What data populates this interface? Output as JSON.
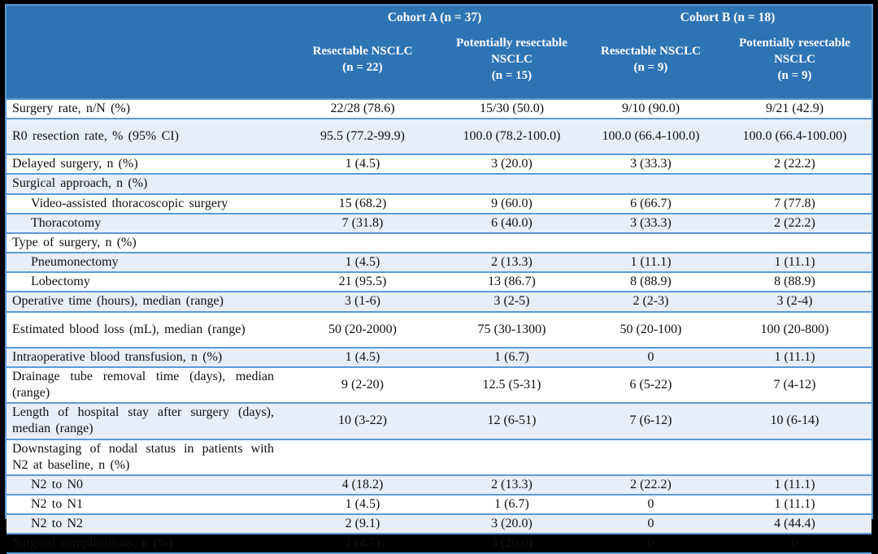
{
  "colors": {
    "header_bg": "#2E74B5",
    "row_alt_bg": "#E8EEF7",
    "border_blue": "#5B9BD5",
    "frame_black": "#000000"
  },
  "table": {
    "cohorts": [
      {
        "label": "Cohort A (n = 37)"
      },
      {
        "label": "Cohort B (n = 18)"
      }
    ],
    "columns": [
      {
        "name": "Resectable NSCLC",
        "n": "(n = 22)"
      },
      {
        "name": "Potentially resectable NSCLC",
        "n": "(n = 15)"
      },
      {
        "name": "Resectable NSCLC",
        "n": "(n = 9)"
      },
      {
        "name": "Potentially resectable NSCLC",
        "n": "(n = 9)"
      }
    ],
    "rows": [
      {
        "label": "Surgery rate, n/N (%)",
        "indent": false,
        "values": [
          "22/28 (78.6)",
          "15/30 (50.0)",
          "9/10 (90.0)",
          "9/21 (42.9)"
        ]
      },
      {
        "label": "R0 resection rate, % (95% CI)",
        "indent": false,
        "tall": true,
        "values": [
          "95.5 (77.2-99.9)",
          "100.0 (78.2-100.0)",
          "100.0 (66.4-100.0)",
          "100.0 (66.4-100.00)"
        ]
      },
      {
        "label": "Delayed surgery, n (%)",
        "indent": false,
        "values": [
          "1 (4.5)",
          "3 (20.0)",
          "3 (33.3)",
          "2 (22.2)"
        ]
      },
      {
        "label": "Surgical approach, n (%)",
        "indent": false,
        "values": [
          "",
          "",
          "",
          ""
        ]
      },
      {
        "label": "Video-assisted thoracoscopic surgery",
        "indent": true,
        "values": [
          "15 (68.2)",
          "9 (60.0)",
          "6 (66.7)",
          "7 (77.8)"
        ]
      },
      {
        "label": "Thoracotomy",
        "indent": true,
        "values": [
          "7 (31.8)",
          "6 (40.0)",
          "3 (33.3)",
          "2 (22.2)"
        ]
      },
      {
        "label": "Type of surgery, n (%)",
        "indent": false,
        "values": [
          "",
          "",
          "",
          ""
        ]
      },
      {
        "label": "Pneumonectomy",
        "indent": true,
        "values": [
          "1 (4.5)",
          "2 (13.3)",
          "1 (11.1)",
          "1 (11.1)"
        ]
      },
      {
        "label": "Lobectomy",
        "indent": true,
        "values": [
          "21 (95.5)",
          "13 (86.7)",
          "8 (88.9)",
          "8 (88.9)"
        ]
      },
      {
        "label": "Operative time (hours), median (range)",
        "indent": false,
        "values": [
          "3 (1-6)",
          "3 (2-5)",
          "2 (2-3)",
          "3 (2-4)"
        ]
      },
      {
        "label": "Estimated blood loss (mL), median (range)",
        "indent": false,
        "tall": true,
        "values": [
          "50 (20-2000)",
          "75 (30-1300)",
          "50 (20-100)",
          "100 (20-800)"
        ]
      },
      {
        "label": "Intraoperative blood transfusion, n (%)",
        "indent": false,
        "values": [
          "1 (4.5)",
          "1 (6.7)",
          "0",
          "1 (11.1)"
        ]
      },
      {
        "label": "Drainage tube removal time (days), median (range)",
        "indent": false,
        "values": [
          "9 (2-20)",
          "12.5 (5-31)",
          "6 (5-22)",
          "7 (4-12)"
        ]
      },
      {
        "label": "Length of hospital stay after surgery (days), median (range)",
        "indent": false,
        "values": [
          "10 (3-22)",
          "12 (6-51)",
          "7 (6-12)",
          "10 (6-14)"
        ]
      },
      {
        "label": "Downstaging of nodal status in patients with N2 at baseline, n (%)",
        "indent": false,
        "values": [
          "",
          "",
          "",
          ""
        ]
      },
      {
        "label": "N2 to N0",
        "indent": true,
        "values": [
          "4 (18.2)",
          "2 (13.3)",
          "2 (22.2)",
          "1 (11.1)"
        ]
      },
      {
        "label": "N2 to N1",
        "indent": true,
        "values": [
          "1 (4.5)",
          "1 (6.7)",
          "0",
          "1 (11.1)"
        ]
      },
      {
        "label": "N2 to N2",
        "indent": true,
        "values": [
          "2 (9.1)",
          "3 (20.0)",
          "0",
          "4 (44.4)"
        ]
      },
      {
        "label": "Surgical complications, n (%)",
        "indent": false,
        "values": [
          "1 (4.5)",
          "3 (20.0)",
          "0",
          "0"
        ]
      }
    ]
  }
}
